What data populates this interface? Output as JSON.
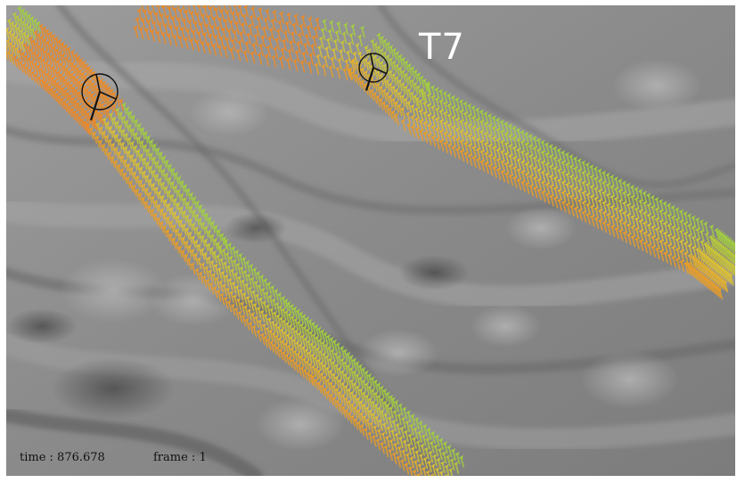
{
  "scene": {
    "label": "T7",
    "time_text": "time : 876.678",
    "frame_text": "frame : 1"
  },
  "colors": {
    "surface_light": "#b4b4b4",
    "surface_mid": "#8c8c8c",
    "surface_dark": "#4a4a4a",
    "arrow_cyan": "#3cc8b0",
    "arrow_green": "#a0d040",
    "arrow_yellow": "#e0c030",
    "arrow_orange": "#f08020"
  },
  "icons": [
    "dipole-marker-icon",
    "dipole-marker-icon"
  ]
}
